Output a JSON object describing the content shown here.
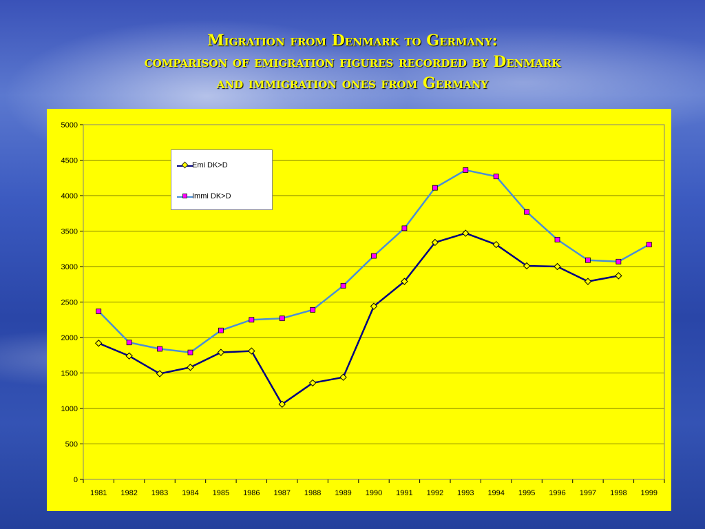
{
  "title": {
    "line1": "Migration from Denmark to Germany:",
    "line2": "comparison of emigration figures recorded by Denmark",
    "line3": "and immigration ones from Germany"
  },
  "colors": {
    "background": "#3a52b8",
    "plot_area": "#ffff00",
    "emi_line": "#000080",
    "emi_marker": "#ffff00",
    "immi_line": "#4a8fd6",
    "immi_marker": "#ff00ff"
  },
  "chart_data": {
    "type": "line",
    "categories": [
      "1981",
      "1982",
      "1983",
      "1984",
      "1985",
      "1986",
      "1987",
      "1988",
      "1989",
      "1990",
      "1991",
      "1992",
      "1993",
      "1994",
      "1995",
      "1996",
      "1997",
      "1998",
      "1999"
    ],
    "ylim": [
      0,
      5000
    ],
    "yticks": [
      0,
      500,
      1000,
      1500,
      2000,
      2500,
      3000,
      3500,
      4000,
      4500,
      5000
    ],
    "grid": true,
    "legend_position": "top-left",
    "series": [
      {
        "name": "Emi DK>D",
        "values": [
          1920,
          1740,
          1490,
          1580,
          1790,
          1810,
          1060,
          1360,
          1440,
          2440,
          2790,
          3340,
          3470,
          3310,
          3010,
          3000,
          2790,
          2870,
          null
        ],
        "marker": "diamond"
      },
      {
        "name": "Immi DK>D",
        "values": [
          2370,
          1930,
          1840,
          1790,
          2100,
          2250,
          2270,
          2390,
          2730,
          3150,
          3540,
          4110,
          4360,
          4270,
          3770,
          3380,
          3090,
          3070,
          3310
        ],
        "marker": "square"
      }
    ]
  }
}
